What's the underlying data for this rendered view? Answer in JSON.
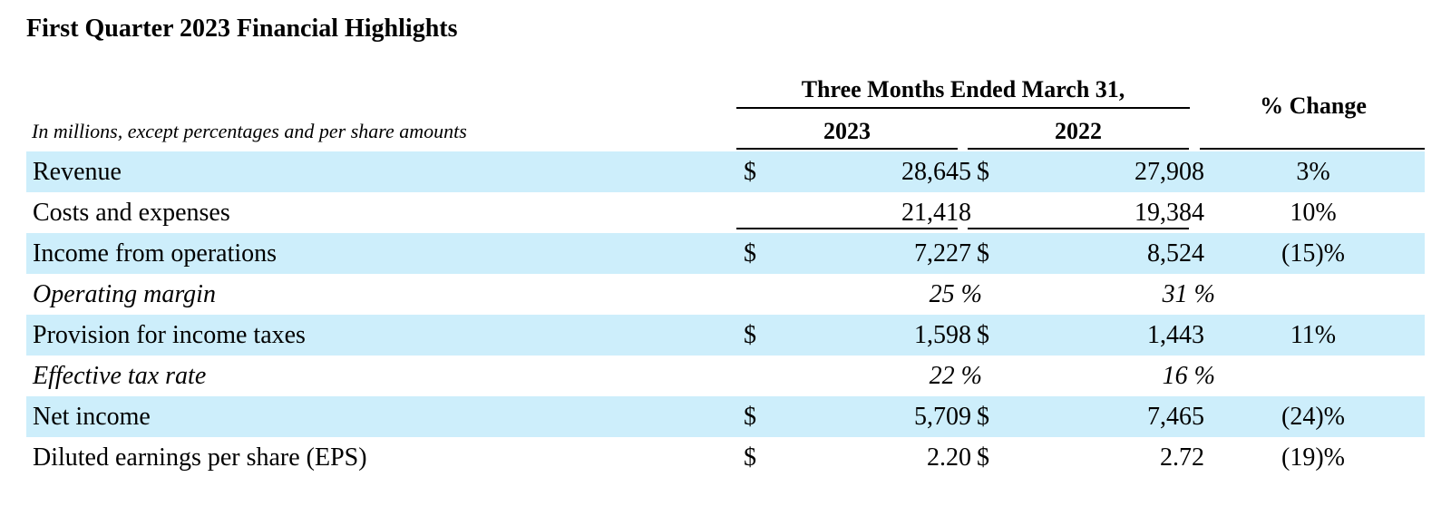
{
  "title": "First Quarter 2023 Financial Highlights",
  "header": {
    "period": "Three Months Ended March 31,",
    "year_current": "2023",
    "year_prior": "2022",
    "change": "% Change",
    "note": "In millions, except percentages and per share amounts"
  },
  "rows": [
    {
      "label": "Revenue",
      "cur_sym": "$",
      "current": "28,645",
      "prior_sym": "$",
      "prior": "27,908",
      "change": "3%"
    },
    {
      "label": "Costs and expenses",
      "cur_sym": "",
      "current": "21,418",
      "prior_sym": "",
      "prior": "19,384",
      "change": "10%"
    },
    {
      "label": "Income from operations",
      "cur_sym": "$",
      "current": "7,227",
      "prior_sym": "$",
      "prior": "8,524",
      "change": "(15)%"
    },
    {
      "label": "Operating margin",
      "cur_sym": "",
      "current": "25 %",
      "prior_sym": "",
      "prior": "31 %",
      "change": ""
    },
    {
      "label": "Provision for income taxes",
      "cur_sym": "$",
      "current": "1,598",
      "prior_sym": "$",
      "prior": "1,443",
      "change": "11%"
    },
    {
      "label": "Effective tax rate",
      "cur_sym": "",
      "current": "22 %",
      "prior_sym": "",
      "prior": "16 %",
      "change": ""
    },
    {
      "label": "Net income",
      "cur_sym": "$",
      "current": "5,709",
      "prior_sym": "$",
      "prior": "7,465",
      "change": "(24)%"
    },
    {
      "label": "Diluted earnings per share (EPS)",
      "cur_sym": "$",
      "current": "2.20",
      "prior_sym": "$",
      "prior": "2.72",
      "change": "(19)%"
    }
  ],
  "colors": {
    "row_shade": "#cdeefb",
    "text": "#000000"
  }
}
